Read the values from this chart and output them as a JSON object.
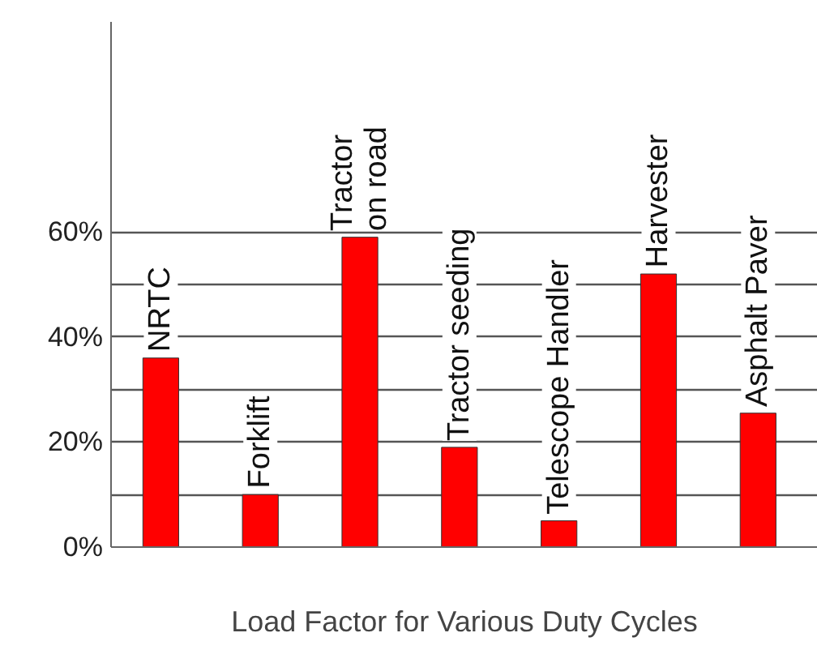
{
  "chart_data": {
    "type": "bar",
    "xlabel": "Load Factor for Various Duty Cycles",
    "categories": [
      "NRTC",
      "Forklift",
      "Tractor\non road",
      "Tractor seeding",
      "Telescope Handler",
      "Harvester",
      "Asphalt Paver"
    ],
    "values": [
      36,
      10,
      59,
      19,
      5,
      52,
      25.5
    ],
    "color": "#ff0000",
    "ylim": [
      0,
      100
    ],
    "yticks": [
      {
        "value": 0,
        "label": "0%"
      },
      {
        "value": 10,
        "label": null
      },
      {
        "value": 20,
        "label": "20%"
      },
      {
        "value": 30,
        "label": null
      },
      {
        "value": 40,
        "label": "40%"
      },
      {
        "value": 50,
        "label": null
      },
      {
        "value": 60,
        "label": "60%"
      }
    ],
    "grid": "y",
    "tick_labels": "y"
  }
}
